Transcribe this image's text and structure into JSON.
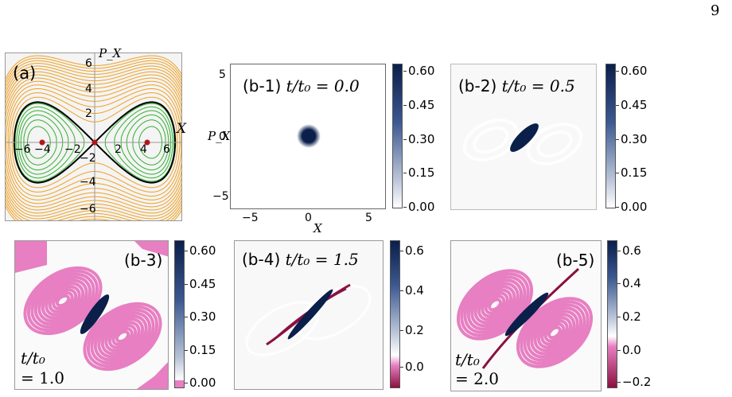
{
  "page_number": "9",
  "colors": {
    "orange": "#f0a020",
    "green": "#30b030",
    "separatrix": "#000000",
    "fixed_point": "#b01818",
    "navy": "#0a1f4a",
    "pink": "#e77fc2",
    "maroon": "#8b1040"
  },
  "panel_a": {
    "label": "(a)",
    "x_axis_label": "X",
    "y_axis_label": "P_X",
    "x_ticks": [
      "−6",
      "−4",
      "−2",
      "2",
      "4",
      "6"
    ],
    "y_ticks": [
      "6",
      "4",
      "2",
      "−2",
      "−4",
      "−6"
    ]
  },
  "panels_b": [
    {
      "id": "b-1",
      "label": "(b-1)",
      "time_text": "t/t₀ = 0.0",
      "cbar_ticks": [
        "0.60",
        "0.45",
        "0.30",
        "0.15",
        "0.00"
      ],
      "x_axis_label": "X",
      "y_axis_label": "P_X",
      "x_ticks": [
        "−5",
        "0",
        "5"
      ],
      "y_ticks": [
        "5",
        "0",
        "−5"
      ]
    },
    {
      "id": "b-2",
      "label": "(b-2)",
      "time_text": "t/t₀ = 0.5",
      "cbar_ticks": [
        "0.60",
        "0.45",
        "0.30",
        "0.15",
        "0.00"
      ]
    },
    {
      "id": "b-3",
      "label": "(b-3)",
      "time_text_line1": "t/t₀",
      "time_text_line2": "= 1.0",
      "cbar_ticks": [
        "0.60",
        "0.45",
        "0.30",
        "0.15",
        "0.00"
      ]
    },
    {
      "id": "b-4",
      "label": "(b-4)",
      "time_text": "t/t₀ = 1.5",
      "cbar_ticks": [
        "0.6",
        "0.4",
        "0.2",
        "0.0"
      ]
    },
    {
      "id": "b-5",
      "label": "(b-5)",
      "time_text_line1": "t/t₀",
      "time_text_line2": "= 2.0",
      "cbar_ticks": [
        "0.6",
        "0.4",
        "0.2",
        "0.0",
        "−0.2"
      ]
    }
  ]
}
